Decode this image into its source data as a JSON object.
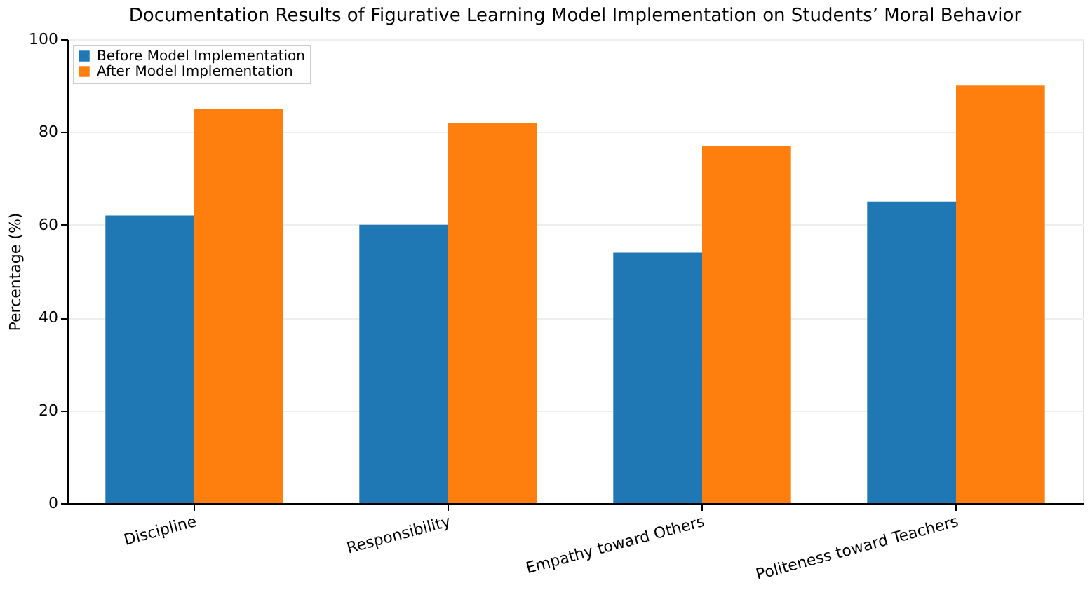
{
  "chart_data": {
    "type": "bar",
    "title": "Documentation Results of Figurative Learning Model Implementation on Students’ Moral Behavior",
    "ylabel": "Percentage (%)",
    "categories": [
      "Discipline",
      "Responsibility",
      "Empathy toward Others",
      "Politeness toward Teachers"
    ],
    "series": [
      {
        "name": "Before Model Implementation",
        "color": "#1f77b4",
        "values": [
          62,
          60,
          54,
          65
        ]
      },
      {
        "name": "After Model Implementation",
        "color": "#ff7f0e",
        "values": [
          85,
          82,
          77,
          90
        ]
      }
    ],
    "ylim": [
      0,
      100
    ],
    "yticks": [
      0,
      20,
      40,
      60,
      80,
      100
    ],
    "grid": "y",
    "legend": "top left"
  }
}
